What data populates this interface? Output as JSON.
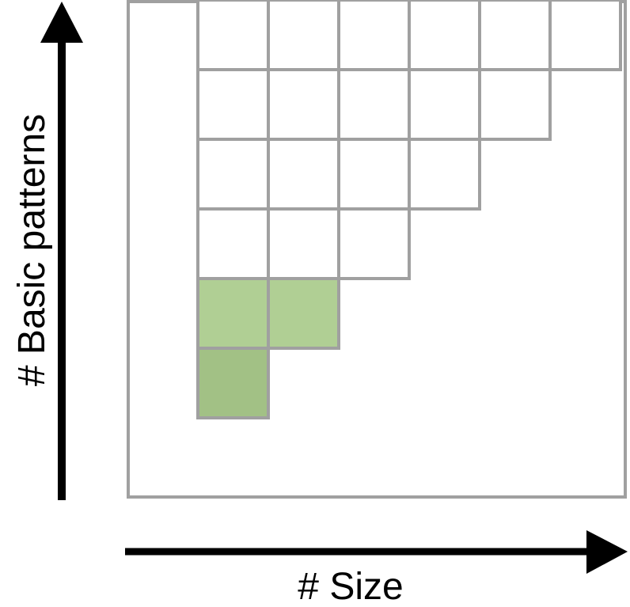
{
  "axes": {
    "y_label": "# Basic patterns",
    "x_label": "# Size"
  },
  "grid": {
    "rows": [
      {
        "row": 1,
        "cells": 6
      },
      {
        "row": 2,
        "cells": 5
      },
      {
        "row": 3,
        "cells": 4
      },
      {
        "row": 4,
        "cells": 3
      },
      {
        "row": 5,
        "cells": 2
      },
      {
        "row": 6,
        "cells": 1
      }
    ],
    "highlighted": [
      {
        "row": 5,
        "col": 1,
        "color": "#b0cf94"
      },
      {
        "row": 5,
        "col": 2,
        "color": "#b0cf94"
      },
      {
        "row": 6,
        "col": 1,
        "color": "#a2c185"
      }
    ]
  },
  "colors": {
    "frame": "#a0a0a0",
    "cell_stroke": "#a0a0a0",
    "arrow": "#000000",
    "background": "#ffffff"
  }
}
